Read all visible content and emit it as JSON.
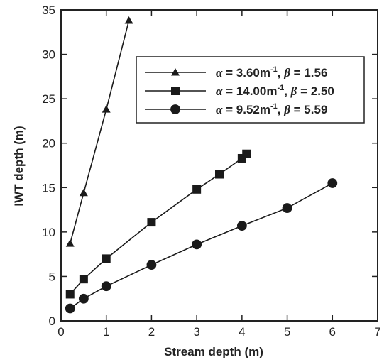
{
  "chart_data": {
    "type": "line",
    "title": "",
    "xlabel": "Stream depth (m)",
    "ylabel": "IWT depth (m)",
    "xlim": [
      0,
      7
    ],
    "ylim": [
      0,
      35
    ],
    "xticks": [
      0,
      1,
      2,
      3,
      4,
      5,
      6,
      7
    ],
    "yticks": [
      0,
      5,
      10,
      15,
      20,
      25,
      30,
      35
    ],
    "grid": false,
    "legend_position": "top-right",
    "series": [
      {
        "marker": "triangle",
        "legend": {
          "alpha_sym": "α",
          "alpha_text": " = 3.60m",
          "sup": "-1",
          "beta_sym": "β",
          "beta_text": " = 1.56"
        },
        "x": [
          0.2,
          0.5,
          1.0,
          1.5
        ],
        "y": [
          8.7,
          14.4,
          23.8,
          33.8
        ]
      },
      {
        "marker": "square",
        "legend": {
          "alpha_sym": "α",
          "alpha_text": " = 14.00m",
          "sup": "-1",
          "beta_sym": "β",
          "beta_text": " = 2.50"
        },
        "x": [
          0.2,
          0.5,
          1.0,
          2.0,
          3.0,
          3.5,
          4.0,
          4.1
        ],
        "y": [
          3.0,
          4.7,
          7.0,
          11.1,
          14.8,
          16.5,
          18.3,
          18.8
        ]
      },
      {
        "marker": "circle",
        "legend": {
          "alpha_sym": "α",
          "alpha_text": " = 9.52m",
          "sup": "-1",
          "beta_sym": "β",
          "beta_text": " = 5.59"
        },
        "x": [
          0.2,
          0.5,
          1.0,
          2.0,
          3.0,
          4.0,
          5.0,
          6.0
        ],
        "y": [
          1.4,
          2.5,
          3.9,
          6.3,
          8.6,
          10.7,
          12.7,
          15.5
        ]
      }
    ]
  }
}
